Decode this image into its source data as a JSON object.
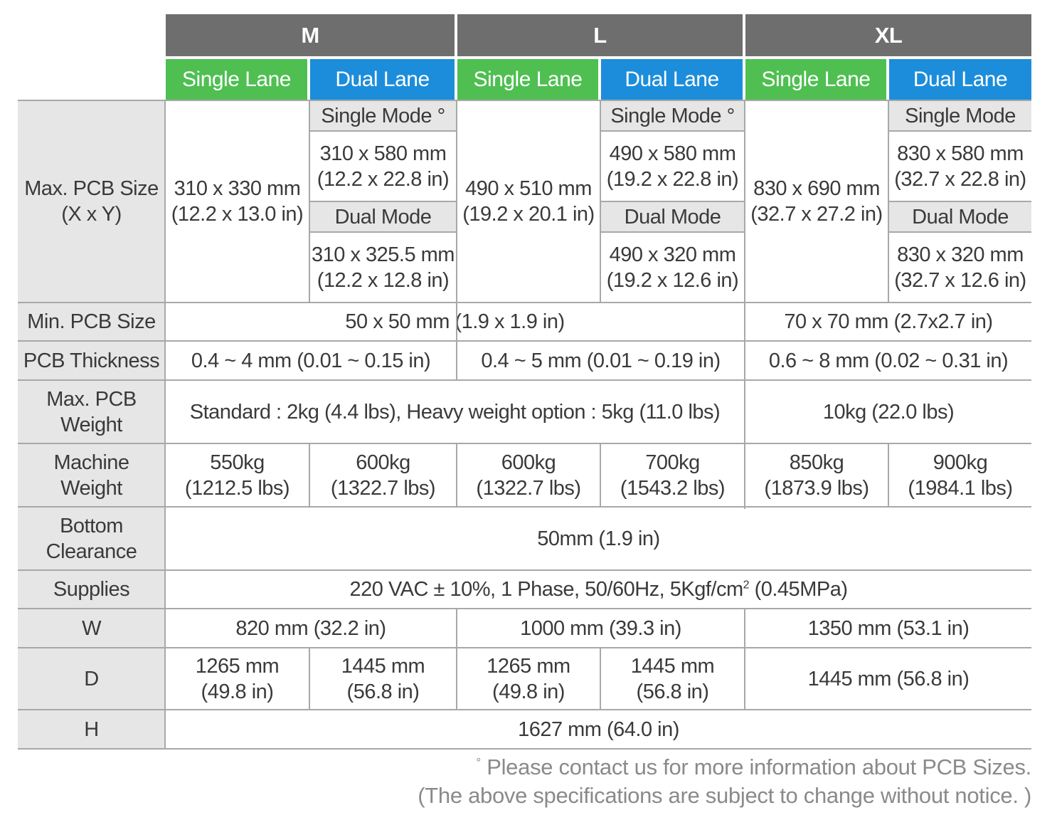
{
  "header": {
    "groups": [
      "M",
      "L",
      "XL"
    ],
    "lanes": [
      "Single Lane",
      "Dual Lane",
      "Single Lane",
      "Dual Lane",
      "Single Lane",
      "Dual Lane"
    ]
  },
  "rows": {
    "max_pcb": {
      "label": [
        "Max. PCB Size",
        "(X x Y)"
      ],
      "m_single": [
        "310 x 330 mm",
        "(12.2 x 13.0 in)"
      ],
      "m_dual_single_mode_label": "Single Mode °",
      "m_dual_single_mode": [
        "310 x 580 mm",
        "(12.2 x 22.8 in)"
      ],
      "m_dual_dual_mode_label": "Dual Mode",
      "m_dual_dual_mode": [
        "310 x 325.5 mm",
        "(12.2 x 12.8 in)"
      ],
      "l_single": [
        "490 x 510 mm",
        "(19.2 x 20.1 in)"
      ],
      "l_dual_single_mode_label": "Single Mode °",
      "l_dual_single_mode": [
        "490 x 580 mm",
        "(19.2 x 22.8 in)"
      ],
      "l_dual_dual_mode_label": "Dual Mode",
      "l_dual_dual_mode": [
        "490 x 320 mm",
        "(19.2 x 12.6 in)"
      ],
      "xl_single": [
        "830 x 690 mm",
        "(32.7 x 27.2 in)"
      ],
      "xl_dual_single_mode_label": "Single Mode",
      "xl_dual_single_mode": [
        "830 x 580 mm",
        "(32.7 x 22.8 in)"
      ],
      "xl_dual_dual_mode_label": "Dual Mode",
      "xl_dual_dual_mode": [
        "830 x 320 mm",
        "(32.7 x 12.6 in)"
      ]
    },
    "min_pcb": {
      "label": "Min. PCB Size",
      "ml": "50 x 50 mm (1.9 x 1.9 in)",
      "xl": "70 x 70 mm (2.7x2.7 in)"
    },
    "thickness": {
      "label": "PCB Thickness",
      "m": "0.4 ~ 4 mm (0.01 ~ 0.15 in)",
      "l": "0.4 ~ 5 mm (0.01 ~ 0.19 in)",
      "xl": "0.6 ~ 8 mm (0.02 ~ 0.31 in)"
    },
    "max_weight": {
      "label": [
        "Max. PCB",
        "Weight"
      ],
      "ml": "Standard : 2kg (4.4 lbs), Heavy weight option : 5kg (11.0 lbs)",
      "xl": "10kg (22.0 lbs)"
    },
    "machine_weight": {
      "label": [
        "Machine",
        "Weight"
      ],
      "values": [
        [
          "550kg",
          "(1212.5 lbs)"
        ],
        [
          "600kg",
          "(1322.7 lbs)"
        ],
        [
          "600kg",
          "(1322.7 lbs)"
        ],
        [
          "700kg",
          "(1543.2 lbs)"
        ],
        [
          "850kg",
          "(1873.9 lbs)"
        ],
        [
          "900kg",
          "(1984.1 lbs)"
        ]
      ]
    },
    "bottom_clearance": {
      "label": [
        "Bottom",
        "Clearance"
      ],
      "value": "50mm (1.9 in)"
    },
    "supplies": {
      "label": "Supplies",
      "value_pre": "220 VAC ± 10%, 1 Phase, 50/60Hz, 5Kgf/cm",
      "value_sup": "2",
      "value_post": " (0.45MPa)"
    },
    "w": {
      "label": "W",
      "m": "820 mm (32.2 in)",
      "l": "1000 mm (39.3 in)",
      "xl": "1350 mm (53.1 in)"
    },
    "d": {
      "label": "D",
      "values": [
        [
          "1265 mm",
          "(49.8 in)"
        ],
        [
          "1445 mm",
          "(56.8 in)"
        ],
        [
          "1265 mm",
          "(49.8 in)"
        ],
        [
          "1445 mm",
          "(56.8 in)"
        ]
      ],
      "xl": "1445 mm (56.8 in)"
    },
    "h": {
      "label": "H",
      "value": "1627 mm (64.0 in)"
    }
  },
  "notes": {
    "line1_mark": "°",
    "line1": " Please contact  us for more information about PCB Sizes.",
    "line2": "(The above specifications are subject to change without notice. )"
  }
}
